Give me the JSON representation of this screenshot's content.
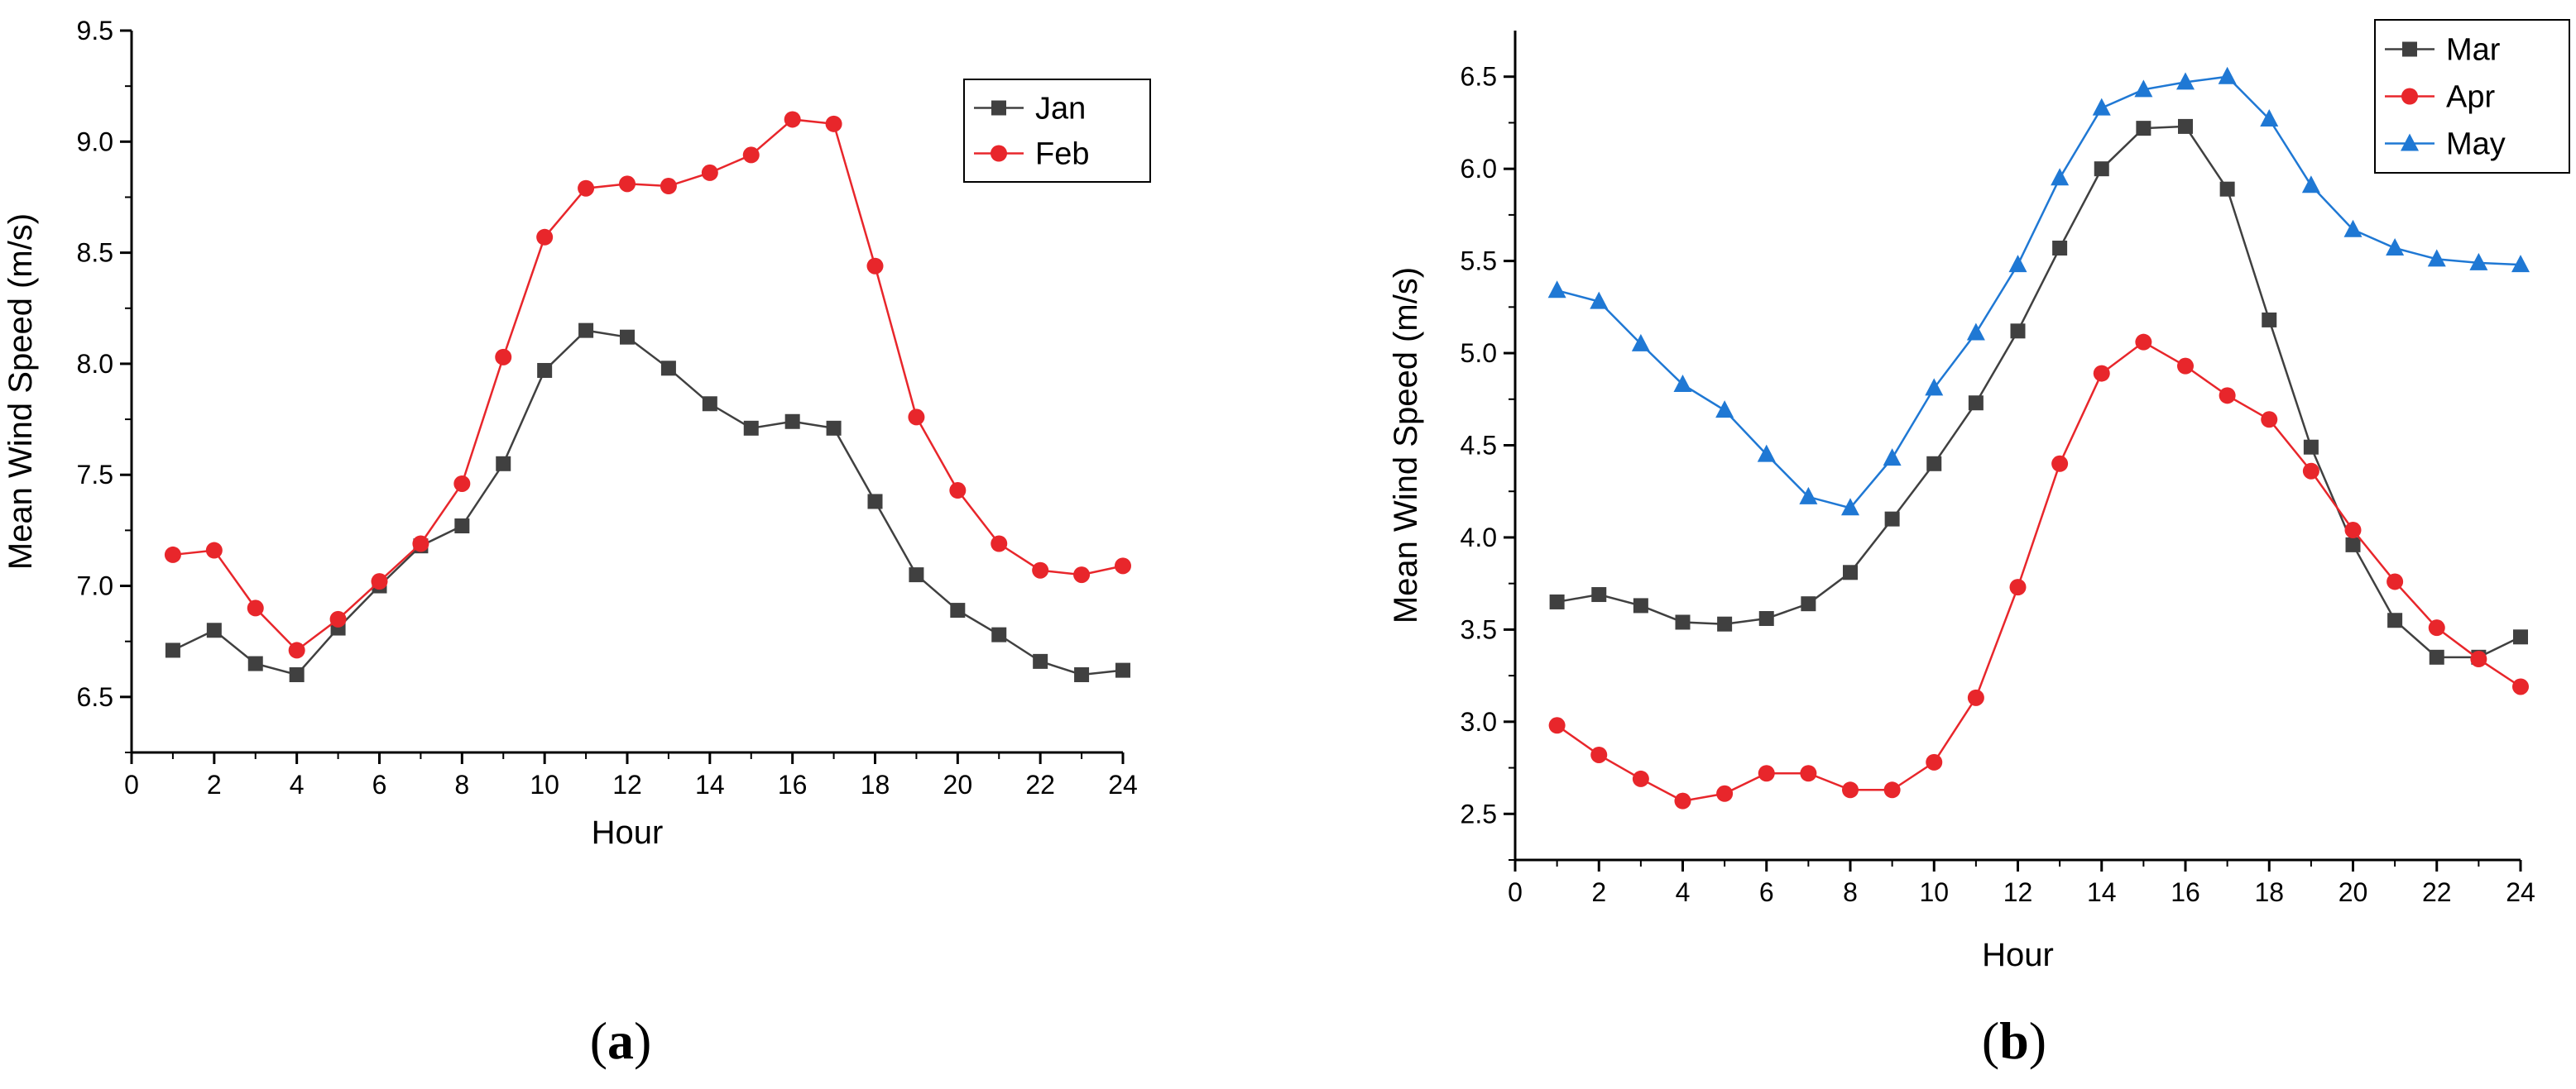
{
  "chart_data": [
    {
      "type": "line",
      "panel_label": {
        "open": "(",
        "letter": "a",
        "close": ")"
      },
      "title": "",
      "xlabel": "Hour",
      "ylabel": "Mean Wind Speed (m/s)",
      "xlim": [
        0,
        24
      ],
      "ylim": [
        6.25,
        9.5
      ],
      "xticks": [
        0,
        2,
        4,
        6,
        8,
        10,
        12,
        14,
        16,
        18,
        20,
        22,
        24
      ],
      "yticks": [
        6.5,
        7.0,
        7.5,
        8.0,
        8.5,
        9.0,
        9.5
      ],
      "ytick_labels": [
        "6.5",
        "7.0",
        "7.5",
        "8.0",
        "8.5",
        "9.0",
        "9.5"
      ],
      "grid": false,
      "legend_position": "top-right",
      "x": [
        1,
        2,
        3,
        4,
        5,
        6,
        7,
        8,
        9,
        10,
        11,
        12,
        13,
        14,
        15,
        16,
        17,
        18,
        19,
        20,
        21,
        22,
        23,
        24
      ],
      "series": [
        {
          "name": "Jan",
          "color": "#404040",
          "marker": "square",
          "values": [
            6.71,
            6.8,
            6.65,
            6.6,
            6.81,
            7.0,
            7.18,
            7.27,
            7.55,
            7.97,
            8.15,
            8.12,
            7.98,
            7.82,
            7.71,
            7.74,
            7.71,
            7.38,
            7.05,
            6.89,
            6.78,
            6.66,
            6.6,
            6.62
          ]
        },
        {
          "name": "Feb",
          "color": "#e8262b",
          "marker": "circle",
          "values": [
            7.14,
            7.16,
            6.9,
            6.71,
            6.85,
            7.02,
            7.19,
            7.46,
            8.03,
            8.57,
            8.79,
            8.81,
            8.8,
            8.86,
            8.94,
            9.1,
            9.08,
            8.44,
            7.76,
            7.43,
            7.19,
            7.07,
            7.05,
            7.09
          ]
        }
      ]
    },
    {
      "type": "line",
      "panel_label": {
        "open": "(",
        "letter": "b",
        "close": ")"
      },
      "title": "",
      "xlabel": "Hour",
      "ylabel": "Mean Wind Speed (m/s)",
      "xlim": [
        0,
        24
      ],
      "ylim": [
        2.25,
        6.75
      ],
      "xticks": [
        0,
        2,
        4,
        6,
        8,
        10,
        12,
        14,
        16,
        18,
        20,
        22,
        24
      ],
      "yticks": [
        2.5,
        3.0,
        3.5,
        4.0,
        4.5,
        5.0,
        5.5,
        6.0,
        6.5
      ],
      "ytick_labels": [
        "2.5",
        "3.0",
        "3.5",
        "4.0",
        "4.5",
        "5.0",
        "5.5",
        "6.0",
        "6.5"
      ],
      "grid": false,
      "legend_position": "top-right",
      "x": [
        1,
        2,
        3,
        4,
        5,
        6,
        7,
        8,
        9,
        10,
        11,
        12,
        13,
        14,
        15,
        16,
        17,
        18,
        19,
        20,
        21,
        22,
        23,
        24
      ],
      "series": [
        {
          "name": "Mar",
          "color": "#404040",
          "marker": "square",
          "values": [
            3.65,
            3.69,
            3.63,
            3.54,
            3.53,
            3.56,
            3.64,
            3.81,
            4.1,
            4.4,
            4.73,
            5.12,
            5.57,
            6.0,
            6.22,
            6.23,
            5.89,
            5.18,
            4.49,
            3.96,
            3.55,
            3.35,
            3.35,
            3.46
          ]
        },
        {
          "name": "Apr",
          "color": "#e8262b",
          "marker": "circle",
          "values": [
            2.98,
            2.82,
            2.69,
            2.57,
            2.61,
            2.72,
            2.72,
            2.63,
            2.63,
            2.78,
            3.13,
            3.73,
            4.4,
            4.89,
            5.06,
            4.93,
            4.77,
            4.64,
            4.36,
            4.04,
            3.76,
            3.51,
            3.34,
            3.19
          ]
        },
        {
          "name": "May",
          "color": "#1f78d4",
          "marker": "triangle",
          "values": [
            5.34,
            5.28,
            5.05,
            4.83,
            4.69,
            4.45,
            4.22,
            4.16,
            4.43,
            4.81,
            5.11,
            5.48,
            5.95,
            6.33,
            6.43,
            6.47,
            6.5,
            6.27,
            5.91,
            5.67,
            5.57,
            5.51,
            5.49,
            5.48
          ]
        }
      ]
    }
  ]
}
